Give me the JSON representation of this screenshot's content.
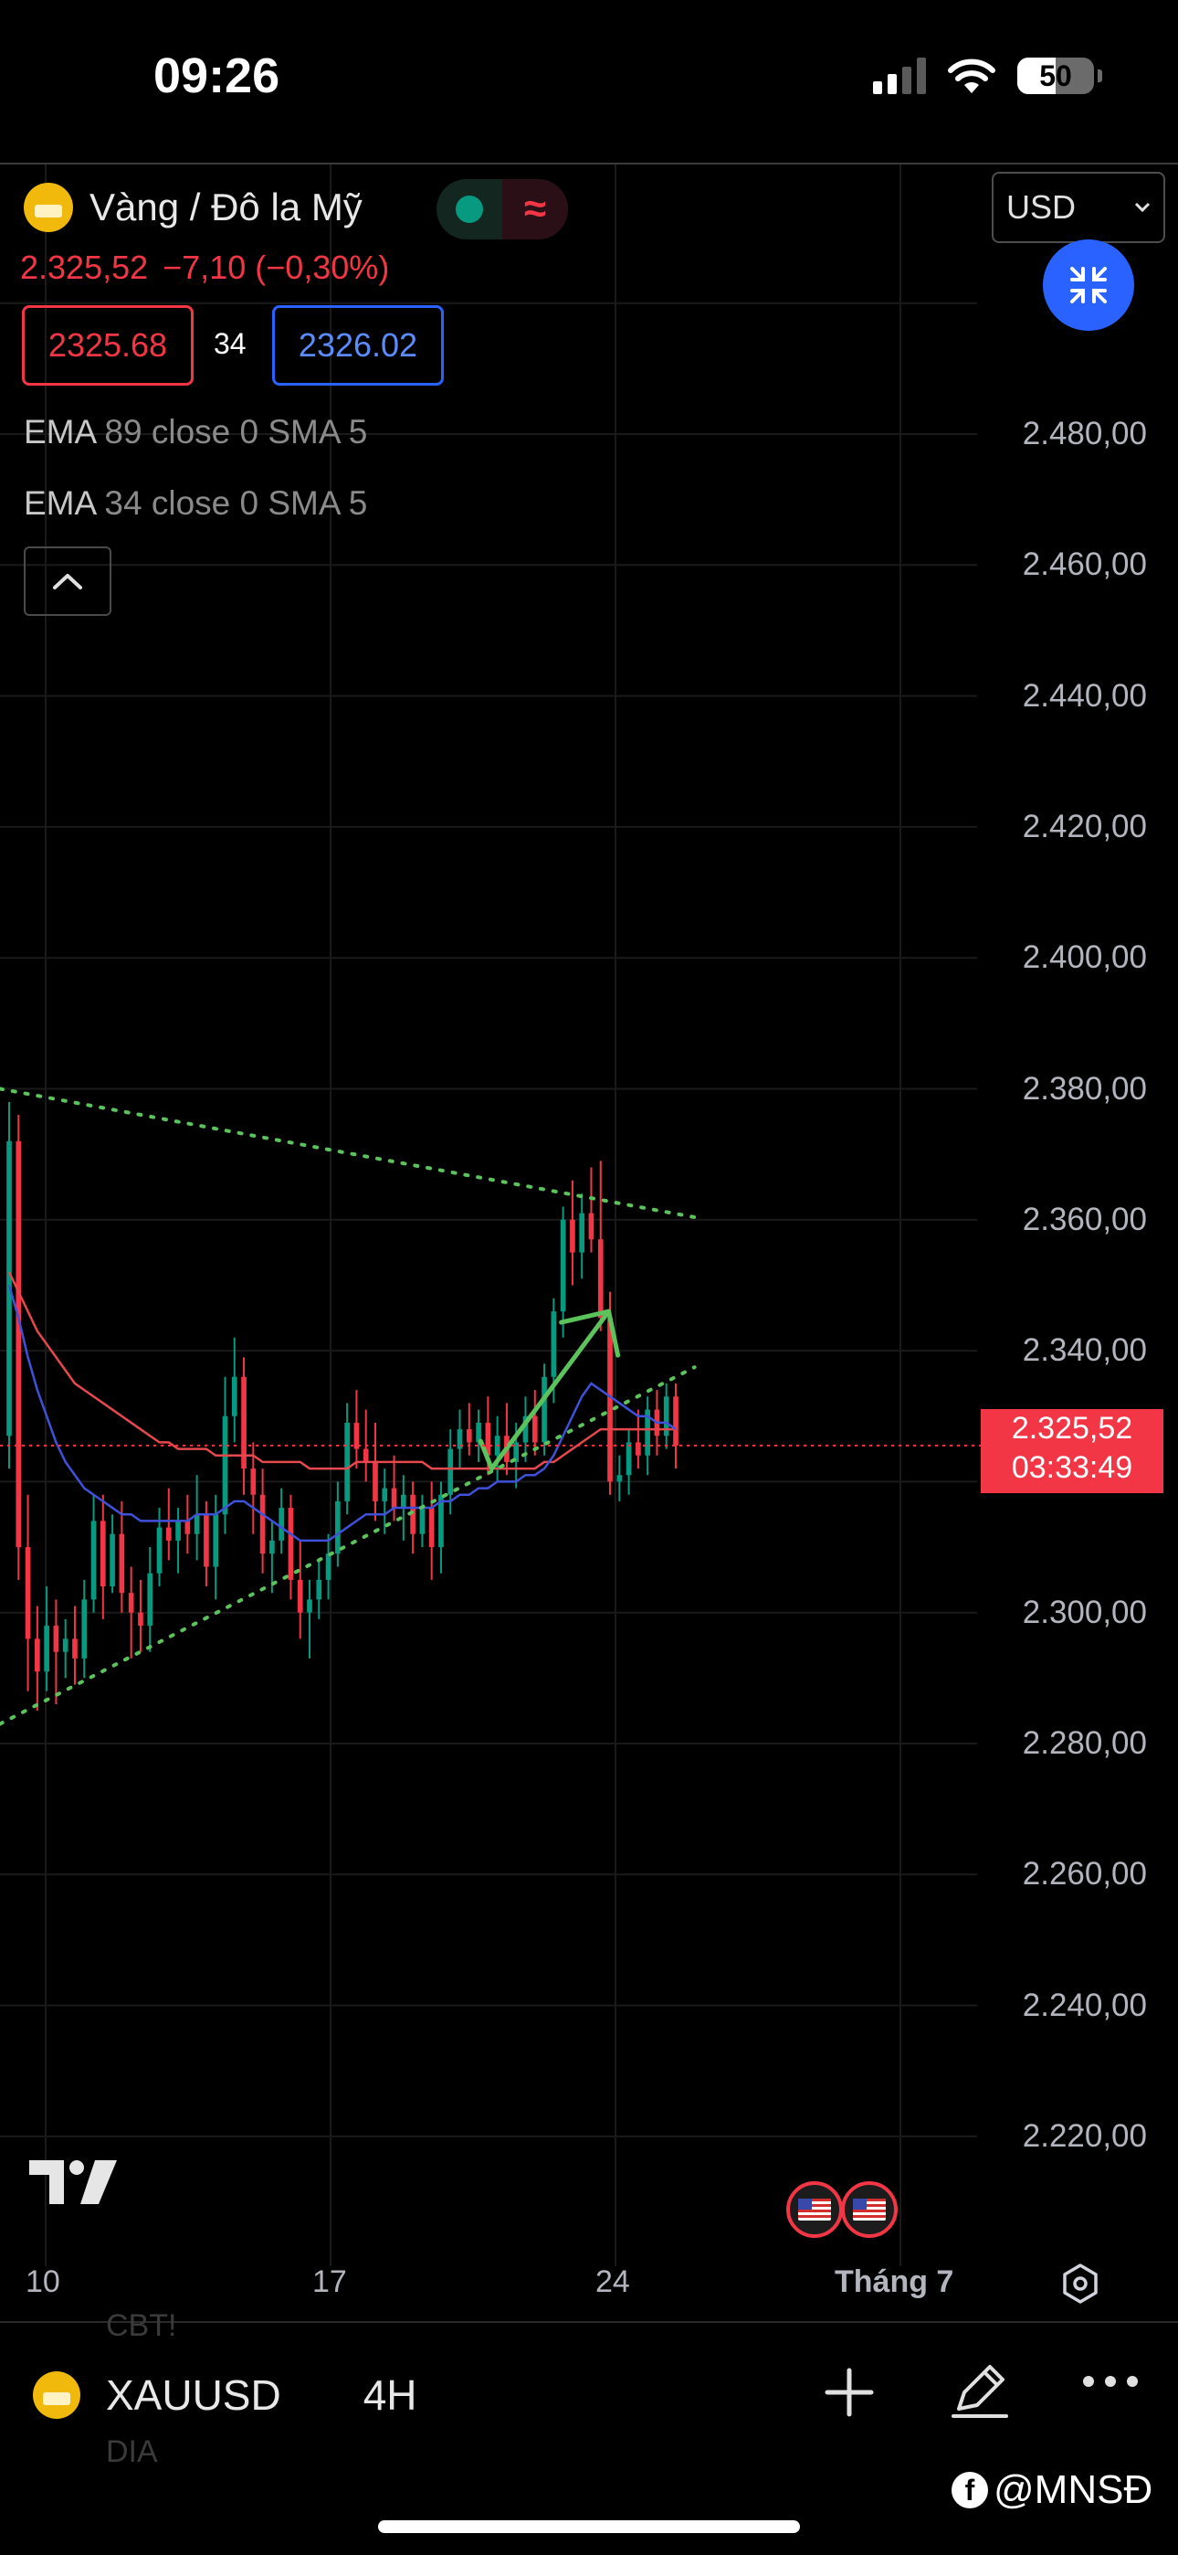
{
  "status_bar": {
    "time": "09:26",
    "battery": "50"
  },
  "header": {
    "symbol_name": "Vàng / Đô la Mỹ",
    "status_sign": "≈",
    "last_price": "2.325,52",
    "change": "−7,10 (−0,30%)",
    "bid": "2325.68",
    "spread": "34",
    "ask": "2326.02",
    "currency": "USD"
  },
  "indicators": [
    {
      "name": "EMA",
      "params": "89 close 0 SMA 5"
    },
    {
      "name": "EMA",
      "params": "34 close 0 SMA 5"
    }
  ],
  "price_axis": {
    "labels": [
      "2.480,00",
      "2.460,00",
      "2.440,00",
      "2.420,00",
      "2.400,00",
      "2.380,00",
      "2.360,00",
      "2.340,00",
      "2.300,00",
      "2.280,00",
      "2.260,00",
      "2.240,00",
      "2.220,00"
    ],
    "current_price": "2.325,52",
    "countdown": "03:33:49"
  },
  "time_axis": {
    "labels": [
      "10",
      "17",
      "24"
    ],
    "month": "Tháng 7"
  },
  "bottom_bar": {
    "ticker": "XAUUSD",
    "interval": "4H",
    "ghost_top": "CBT!",
    "ghost_bottom": "DIA"
  },
  "watermark": {
    "text": "@MNSĐ"
  },
  "colors": {
    "up": "#089981",
    "down": "#f23645",
    "ema89": "#e5484d",
    "ema34": "#3f51d9",
    "trend": "#5cc35c",
    "accent": "#2962ff"
  },
  "chart_data": {
    "type": "candlestick",
    "timeframe": "4H",
    "ylim": [
      2210,
      2490
    ],
    "x_ticks": [
      "10",
      "17",
      "24",
      "Tháng 7"
    ],
    "ohlc": [
      [
        2327,
        2378,
        2322,
        2372
      ],
      [
        2372,
        2376,
        2305,
        2310
      ],
      [
        2310,
        2318,
        2288,
        2296
      ],
      [
        2296,
        2301,
        2285,
        2291
      ],
      [
        2291,
        2304,
        2288,
        2298
      ],
      [
        2298,
        2302,
        2286,
        2294
      ],
      [
        2294,
        2299,
        2290,
        2296
      ],
      [
        2296,
        2301,
        2289,
        2293
      ],
      [
        2293,
        2305,
        2290,
        2302
      ],
      [
        2302,
        2318,
        2300,
        2314
      ],
      [
        2314,
        2318,
        2299,
        2304
      ],
      [
        2304,
        2315,
        2303,
        2312
      ],
      [
        2312,
        2317,
        2300,
        2303
      ],
      [
        2303,
        2307,
        2293,
        2300
      ],
      [
        2300,
        2305,
        2294,
        2298
      ],
      [
        2298,
        2310,
        2294,
        2306
      ],
      [
        2306,
        2316,
        2304,
        2313
      ],
      [
        2313,
        2319,
        2308,
        2311
      ],
      [
        2311,
        2316,
        2306,
        2314
      ],
      [
        2314,
        2318,
        2309,
        2312
      ],
      [
        2312,
        2321,
        2308,
        2315
      ],
      [
        2315,
        2317,
        2304,
        2307
      ],
      [
        2307,
        2318,
        2302,
        2315
      ],
      [
        2315,
        2336,
        2312,
        2330
      ],
      [
        2330,
        2342,
        2326,
        2336
      ],
      [
        2336,
        2339,
        2318,
        2322
      ],
      [
        2322,
        2326,
        2312,
        2318
      ],
      [
        2318,
        2322,
        2306,
        2309
      ],
      [
        2309,
        2314,
        2303,
        2311
      ],
      [
        2311,
        2319,
        2309,
        2316
      ],
      [
        2316,
        2318,
        2302,
        2305
      ],
      [
        2305,
        2311,
        2296,
        2300
      ],
      [
        2300,
        2305,
        2293,
        2302
      ],
      [
        2302,
        2308,
        2299,
        2305
      ],
      [
        2305,
        2312,
        2302,
        2309
      ],
      [
        2309,
        2320,
        2307,
        2317
      ],
      [
        2317,
        2332,
        2315,
        2329
      ],
      [
        2329,
        2334,
        2322,
        2325
      ],
      [
        2325,
        2331,
        2320,
        2323
      ],
      [
        2323,
        2329,
        2314,
        2317
      ],
      [
        2317,
        2322,
        2312,
        2319
      ],
      [
        2319,
        2324,
        2314,
        2316
      ],
      [
        2316,
        2321,
        2311,
        2318
      ],
      [
        2318,
        2320,
        2309,
        2312
      ],
      [
        2312,
        2318,
        2310,
        2316
      ],
      [
        2316,
        2320,
        2305,
        2310
      ],
      [
        2310,
        2320,
        2306,
        2318
      ],
      [
        2318,
        2328,
        2315,
        2325
      ],
      [
        2325,
        2331,
        2322,
        2328
      ],
      [
        2328,
        2332,
        2324,
        2326
      ],
      [
        2326,
        2331,
        2323,
        2329
      ],
      [
        2329,
        2333,
        2321,
        2324
      ],
      [
        2324,
        2330,
        2320,
        2327
      ],
      [
        2327,
        2332,
        2321,
        2323
      ],
      [
        2323,
        2329,
        2319,
        2326
      ],
      [
        2326,
        2333,
        2323,
        2330
      ],
      [
        2330,
        2334,
        2324,
        2326
      ],
      [
        2326,
        2338,
        2324,
        2336
      ],
      [
        2336,
        2348,
        2332,
        2346
      ],
      [
        2346,
        2362,
        2342,
        2360
      ],
      [
        2360,
        2366,
        2350,
        2355
      ],
      [
        2355,
        2364,
        2351,
        2361
      ],
      [
        2361,
        2368,
        2355,
        2357
      ],
      [
        2357,
        2369,
        2343,
        2345
      ],
      [
        2345,
        2349,
        2318,
        2320
      ],
      [
        2320,
        2324,
        2317,
        2321
      ],
      [
        2321,
        2328,
        2318,
        2326
      ],
      [
        2326,
        2331,
        2322,
        2324
      ],
      [
        2324,
        2333,
        2321,
        2331
      ],
      [
        2331,
        2334,
        2324,
        2327
      ],
      [
        2327,
        2335,
        2325,
        2333
      ],
      [
        2333,
        2335,
        2322,
        2325.52
      ]
    ],
    "ema89": [
      2352,
      2349,
      2346,
      2343,
      2341,
      2339,
      2337,
      2335,
      2334,
      2333,
      2332,
      2331,
      2330,
      2329,
      2328,
      2327,
      2326,
      2326,
      2325,
      2325,
      2325,
      2325,
      2324,
      2324,
      2324,
      2324,
      2324,
      2323,
      2323,
      2323,
      2323,
      2323,
      2322,
      2322,
      2322,
      2322,
      2322,
      2323,
      2323,
      2323,
      2323,
      2323,
      2323,
      2323,
      2323,
      2322,
      2322,
      2322,
      2322,
      2322,
      2322,
      2322,
      2322,
      2322,
      2322,
      2322,
      2322,
      2323,
      2323,
      2324,
      2325,
      2326,
      2327,
      2328,
      2328,
      2328,
      2328,
      2328,
      2328,
      2328,
      2328,
      2328
    ],
    "ema34": [
      2350,
      2345,
      2339,
      2334,
      2330,
      2326,
      2323,
      2321,
      2319,
      2318,
      2317,
      2316,
      2315,
      2315,
      2314,
      2314,
      2314,
      2314,
      2314,
      2314,
      2315,
      2315,
      2315,
      2316,
      2317,
      2317,
      2316,
      2315,
      2314,
      2313,
      2312,
      2311,
      2311,
      2311,
      2311,
      2312,
      2313,
      2314,
      2315,
      2315,
      2315,
      2316,
      2316,
      2316,
      2316,
      2316,
      2317,
      2317,
      2318,
      2318,
      2319,
      2319,
      2320,
      2320,
      2320,
      2321,
      2321,
      2322,
      2324,
      2327,
      2330,
      2333,
      2335,
      2334,
      2333,
      2332,
      2331,
      2330,
      2330,
      2329,
      2329,
      2328
    ],
    "trendlines": {
      "upper": [
        [
          0,
          2380
        ],
        [
          67,
          2362
        ]
      ],
      "lower": [
        [
          0,
          2283
        ],
        [
          67,
          2333
        ]
      ],
      "arrow": [
        [
          51,
          2322
        ],
        [
          59,
          2346
        ]
      ]
    },
    "current_price": 2325.52
  }
}
